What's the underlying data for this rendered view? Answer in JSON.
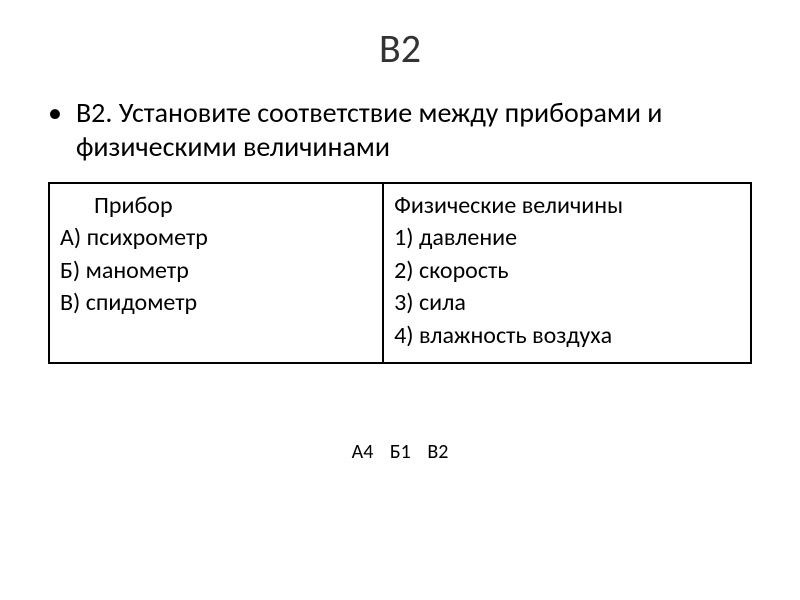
{
  "title": "В2",
  "bullet": {
    "marker": "•",
    "text": "В2. Установите соответствие между приборами и физическими величинами"
  },
  "table": {
    "left": {
      "header": "Прибор",
      "rows": [
        "А) психрометр",
        "Б) манометр",
        "В) спидометр"
      ]
    },
    "right": {
      "header": "Физические величины",
      "rows": [
        "1) давление",
        "2) скорость",
        "3) сила",
        "4) влажность воздуха"
      ]
    }
  },
  "answer": {
    "parts": [
      "А4",
      "Б1",
      "В2"
    ]
  },
  "style": {
    "colors": {
      "background": "#ffffff",
      "text": "#000000",
      "title": "#333333",
      "border": "#000000"
    },
    "font_family": "Calibri, Arial, sans-serif",
    "title_fontsize": 40,
    "body_fontsize": 28,
    "table_fontsize": 24,
    "answer_fontsize": 20,
    "table": {
      "border_width": 2,
      "total_width": 704,
      "left_col_width": 336,
      "right_col_width": 368
    }
  }
}
